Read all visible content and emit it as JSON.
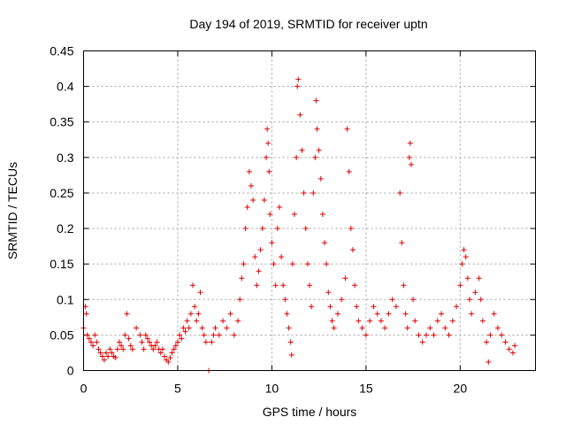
{
  "chart_data": {
    "type": "scatter",
    "title": "Day 194 of 2019, SRMTID for receiver uptn",
    "xlabel": "GPS time / hours",
    "ylabel": "SRMTID / TECUs",
    "xlim": [
      0,
      24
    ],
    "ylim": [
      0,
      0.45
    ],
    "xticks": [
      0,
      5,
      10,
      15,
      20
    ],
    "xtick_labels": [
      "0",
      "5",
      "10",
      "15",
      "20"
    ],
    "yticks": [
      0,
      0.05,
      0.1,
      0.15,
      0.2,
      0.25,
      0.3,
      0.35,
      0.4,
      0.45
    ],
    "ytick_labels": [
      "0",
      "0.05",
      "0.1",
      "0.15",
      "0.2",
      "0.25",
      "0.3",
      "0.35",
      "0.4",
      "0.45"
    ],
    "grid": true,
    "marker": "+",
    "color": "#e00000",
    "series": [
      {
        "name": "SRMTID",
        "points": [
          [
            0.0,
            0.06
          ],
          [
            0.1,
            0.09
          ],
          [
            0.15,
            0.08
          ],
          [
            0.2,
            0.05
          ],
          [
            0.3,
            0.045
          ],
          [
            0.4,
            0.04
          ],
          [
            0.5,
            0.035
          ],
          [
            0.6,
            0.05
          ],
          [
            0.7,
            0.04
          ],
          [
            0.8,
            0.03
          ],
          [
            0.9,
            0.025
          ],
          [
            1.0,
            0.02
          ],
          [
            1.1,
            0.015
          ],
          [
            1.2,
            0.025
          ],
          [
            1.3,
            0.02
          ],
          [
            1.4,
            0.03
          ],
          [
            1.5,
            0.025
          ],
          [
            1.6,
            0.02
          ],
          [
            1.7,
            0.018
          ],
          [
            1.8,
            0.03
          ],
          [
            1.9,
            0.04
          ],
          [
            2.0,
            0.035
          ],
          [
            2.1,
            0.03
          ],
          [
            2.2,
            0.05
          ],
          [
            2.3,
            0.08
          ],
          [
            2.4,
            0.045
          ],
          [
            2.5,
            0.035
          ],
          [
            2.6,
            0.03
          ],
          [
            2.8,
            0.06
          ],
          [
            3.0,
            0.05
          ],
          [
            3.1,
            0.04
          ],
          [
            3.2,
            0.03
          ],
          [
            3.3,
            0.05
          ],
          [
            3.4,
            0.045
          ],
          [
            3.5,
            0.04
          ],
          [
            3.6,
            0.035
          ],
          [
            3.7,
            0.03
          ],
          [
            3.8,
            0.035
          ],
          [
            3.9,
            0.04
          ],
          [
            4.0,
            0.03
          ],
          [
            4.1,
            0.025
          ],
          [
            4.2,
            0.03
          ],
          [
            4.3,
            0.02
          ],
          [
            4.4,
            0.015
          ],
          [
            4.5,
            0.012
          ],
          [
            4.6,
            0.018
          ],
          [
            4.7,
            0.025
          ],
          [
            4.8,
            0.03
          ],
          [
            4.9,
            0.035
          ],
          [
            5.0,
            0.04
          ],
          [
            5.1,
            0.05
          ],
          [
            5.2,
            0.045
          ],
          [
            5.3,
            0.06
          ],
          [
            5.4,
            0.055
          ],
          [
            5.5,
            0.07
          ],
          [
            5.6,
            0.06
          ],
          [
            5.7,
            0.08
          ],
          [
            5.8,
            0.12
          ],
          [
            5.9,
            0.09
          ],
          [
            6.0,
            0.07
          ],
          [
            6.1,
            0.08
          ],
          [
            6.2,
            0.11
          ],
          [
            6.3,
            0.06
          ],
          [
            6.4,
            0.05
          ],
          [
            6.5,
            0.04
          ],
          [
            6.65,
            0.0
          ],
          [
            6.8,
            0.04
          ],
          [
            6.9,
            0.05
          ],
          [
            7.0,
            0.06
          ],
          [
            7.2,
            0.05
          ],
          [
            7.4,
            0.07
          ],
          [
            7.6,
            0.06
          ],
          [
            7.8,
            0.08
          ],
          [
            8.0,
            0.05
          ],
          [
            8.2,
            0.07
          ],
          [
            8.3,
            0.1
          ],
          [
            8.4,
            0.13
          ],
          [
            8.5,
            0.15
          ],
          [
            8.6,
            0.2
          ],
          [
            8.7,
            0.23
          ],
          [
            8.8,
            0.28
          ],
          [
            8.9,
            0.26
          ],
          [
            9.0,
            0.24
          ],
          [
            9.1,
            0.16
          ],
          [
            9.2,
            0.12
          ],
          [
            9.3,
            0.14
          ],
          [
            9.4,
            0.17
          ],
          [
            9.5,
            0.2
          ],
          [
            9.6,
            0.24
          ],
          [
            9.7,
            0.3
          ],
          [
            9.75,
            0.34
          ],
          [
            9.8,
            0.32
          ],
          [
            9.85,
            0.28
          ],
          [
            9.9,
            0.22
          ],
          [
            10.0,
            0.18
          ],
          [
            10.1,
            0.15
          ],
          [
            10.2,
            0.12
          ],
          [
            10.3,
            0.2
          ],
          [
            10.4,
            0.23
          ],
          [
            10.5,
            0.16
          ],
          [
            10.6,
            0.12
          ],
          [
            10.7,
            0.1
          ],
          [
            10.8,
            0.08
          ],
          [
            10.9,
            0.06
          ],
          [
            11.0,
            0.04
          ],
          [
            11.05,
            0.022
          ],
          [
            11.1,
            0.15
          ],
          [
            11.2,
            0.22
          ],
          [
            11.3,
            0.3
          ],
          [
            11.35,
            0.4
          ],
          [
            11.4,
            0.41
          ],
          [
            11.5,
            0.36
          ],
          [
            11.6,
            0.31
          ],
          [
            11.7,
            0.25
          ],
          [
            11.8,
            0.2
          ],
          [
            11.9,
            0.15
          ],
          [
            12.0,
            0.12
          ],
          [
            12.1,
            0.09
          ],
          [
            12.2,
            0.25
          ],
          [
            12.3,
            0.3
          ],
          [
            12.35,
            0.38
          ],
          [
            12.4,
            0.34
          ],
          [
            12.5,
            0.31
          ],
          [
            12.6,
            0.27
          ],
          [
            12.7,
            0.22
          ],
          [
            12.8,
            0.18
          ],
          [
            12.9,
            0.15
          ],
          [
            13.0,
            0.11
          ],
          [
            13.1,
            0.09
          ],
          [
            13.2,
            0.07
          ],
          [
            13.3,
            0.06
          ],
          [
            13.5,
            0.08
          ],
          [
            13.7,
            0.1
          ],
          [
            13.9,
            0.13
          ],
          [
            14.0,
            0.34
          ],
          [
            14.1,
            0.28
          ],
          [
            14.2,
            0.2
          ],
          [
            14.3,
            0.17
          ],
          [
            14.4,
            0.12
          ],
          [
            14.5,
            0.09
          ],
          [
            14.6,
            0.07
          ],
          [
            14.8,
            0.06
          ],
          [
            15.0,
            0.05
          ],
          [
            15.2,
            0.07
          ],
          [
            15.4,
            0.09
          ],
          [
            15.6,
            0.08
          ],
          [
            15.8,
            0.07
          ],
          [
            16.0,
            0.06
          ],
          [
            16.2,
            0.08
          ],
          [
            16.4,
            0.1
          ],
          [
            16.6,
            0.09
          ],
          [
            16.8,
            0.25
          ],
          [
            16.9,
            0.18
          ],
          [
            17.0,
            0.12
          ],
          [
            17.1,
            0.08
          ],
          [
            17.2,
            0.06
          ],
          [
            17.3,
            0.3
          ],
          [
            17.35,
            0.32
          ],
          [
            17.4,
            0.29
          ],
          [
            17.5,
            0.1
          ],
          [
            17.6,
            0.07
          ],
          [
            17.8,
            0.05
          ],
          [
            18.0,
            0.04
          ],
          [
            18.2,
            0.05
          ],
          [
            18.4,
            0.06
          ],
          [
            18.6,
            0.05
          ],
          [
            18.8,
            0.07
          ],
          [
            19.0,
            0.08
          ],
          [
            19.2,
            0.06
          ],
          [
            19.4,
            0.05
          ],
          [
            19.6,
            0.07
          ],
          [
            19.8,
            0.09
          ],
          [
            20.0,
            0.12
          ],
          [
            20.1,
            0.15
          ],
          [
            20.2,
            0.17
          ],
          [
            20.3,
            0.16
          ],
          [
            20.4,
            0.13
          ],
          [
            20.5,
            0.1
          ],
          [
            20.6,
            0.08
          ],
          [
            20.8,
            0.11
          ],
          [
            21.0,
            0.13
          ],
          [
            21.1,
            0.1
          ],
          [
            21.2,
            0.07
          ],
          [
            21.4,
            0.04
          ],
          [
            21.5,
            0.012
          ],
          [
            21.6,
            0.05
          ],
          [
            21.8,
            0.08
          ],
          [
            22.0,
            0.06
          ],
          [
            22.2,
            0.05
          ],
          [
            22.4,
            0.04
          ],
          [
            22.6,
            0.03
          ],
          [
            22.8,
            0.025
          ],
          [
            22.9,
            0.035
          ]
        ]
      }
    ]
  }
}
